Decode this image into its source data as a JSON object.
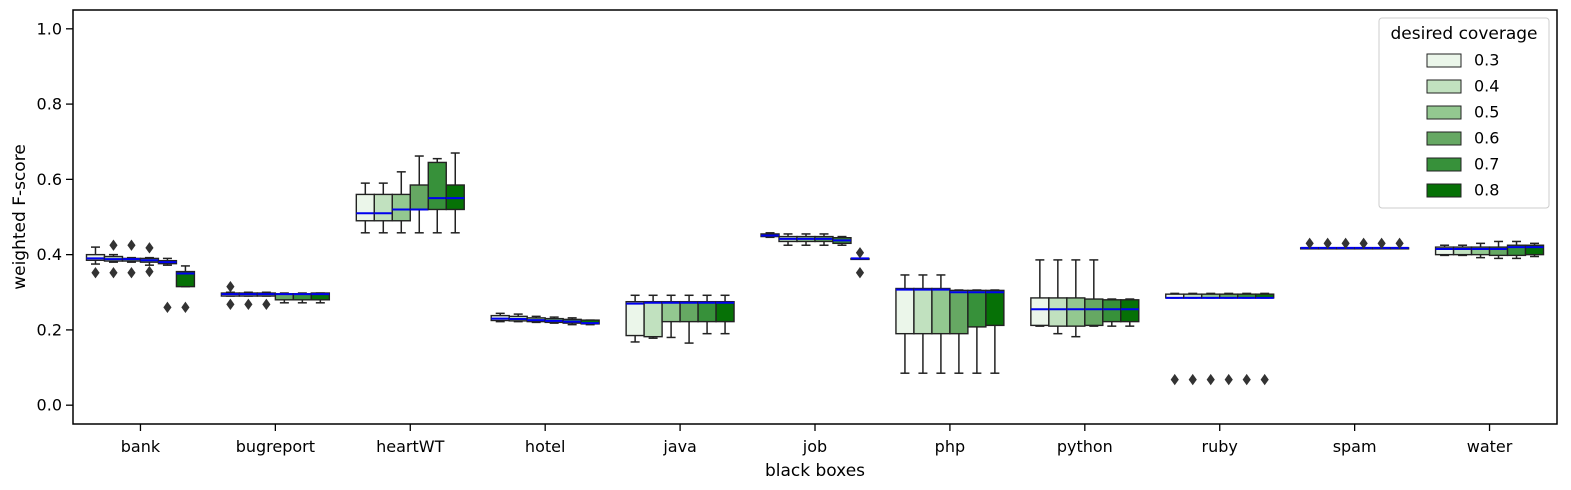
{
  "chart_data": {
    "type": "box",
    "xlabel": "black boxes",
    "ylabel": "weighted F-score",
    "ylim": [
      -0.05,
      1.05
    ],
    "yticks": [
      0.0,
      0.2,
      0.4,
      0.6,
      0.8,
      1.0
    ],
    "ytick_labels": [
      "0.0",
      "0.2",
      "0.4",
      "0.6",
      "0.8",
      "1.0"
    ],
    "grid": false,
    "legend": {
      "title": "desired coverage",
      "placement": "top-right",
      "labels": [
        "0.3",
        "0.4",
        "0.5",
        "0.6",
        "0.7",
        "0.8"
      ]
    },
    "colors": {
      "series": [
        "#ebf6ea",
        "#c1e1bf",
        "#93c890",
        "#66a863",
        "#37913a",
        "#067106"
      ],
      "median": "#0000ee",
      "edge": "#222222"
    },
    "categories": [
      "bank",
      "bugreport",
      "heartWT",
      "hotel",
      "java",
      "job",
      "php",
      "python",
      "ruby",
      "spam",
      "water"
    ],
    "series": [
      {
        "name": "0.3",
        "boxes": [
          {
            "wlo": 0.375,
            "q1": 0.385,
            "med": 0.39,
            "q3": 0.4,
            "whi": 0.42,
            "fliers": [
              0.352
            ]
          },
          {
            "wlo": 0.29,
            "q1": 0.29,
            "med": 0.295,
            "q3": 0.298,
            "whi": 0.3,
            "fliers": [
              0.315,
              0.268
            ]
          },
          {
            "wlo": 0.458,
            "q1": 0.49,
            "med": 0.51,
            "q3": 0.56,
            "whi": 0.59,
            "fliers": []
          },
          {
            "wlo": 0.222,
            "q1": 0.225,
            "med": 0.23,
            "q3": 0.238,
            "whi": 0.244,
            "fliers": []
          },
          {
            "wlo": 0.168,
            "q1": 0.185,
            "med": 0.27,
            "q3": 0.275,
            "whi": 0.292,
            "fliers": []
          },
          {
            "wlo": 0.446,
            "q1": 0.448,
            "med": 0.451,
            "q3": 0.455,
            "whi": 0.458,
            "fliers": []
          },
          {
            "wlo": 0.085,
            "q1": 0.19,
            "med": 0.307,
            "q3": 0.31,
            "whi": 0.346,
            "fliers": []
          },
          {
            "wlo": 0.21,
            "q1": 0.212,
            "med": 0.255,
            "q3": 0.285,
            "whi": 0.386,
            "fliers": []
          },
          {
            "wlo": 0.285,
            "q1": 0.285,
            "med": 0.285,
            "q3": 0.295,
            "whi": 0.297,
            "fliers": [
              0.068
            ]
          },
          {
            "wlo": 0.418,
            "q1": 0.418,
            "med": 0.418,
            "q3": 0.418,
            "whi": 0.418,
            "fliers": [
              0.43
            ]
          },
          {
            "wlo": 0.398,
            "q1": 0.4,
            "med": 0.415,
            "q3": 0.42,
            "whi": 0.425,
            "fliers": []
          }
        ]
      },
      {
        "name": "0.4",
        "boxes": [
          {
            "wlo": 0.38,
            "q1": 0.383,
            "med": 0.388,
            "q3": 0.395,
            "whi": 0.4,
            "fliers": [
              0.425,
              0.352
            ]
          },
          {
            "wlo": 0.29,
            "q1": 0.29,
            "med": 0.295,
            "q3": 0.298,
            "whi": 0.3,
            "fliers": [
              0.268
            ]
          },
          {
            "wlo": 0.458,
            "q1": 0.49,
            "med": 0.51,
            "q3": 0.56,
            "whi": 0.59,
            "fliers": []
          },
          {
            "wlo": 0.222,
            "q1": 0.224,
            "med": 0.229,
            "q3": 0.236,
            "whi": 0.242,
            "fliers": []
          },
          {
            "wlo": 0.178,
            "q1": 0.182,
            "med": 0.272,
            "q3": 0.275,
            "whi": 0.292,
            "fliers": []
          },
          {
            "wlo": 0.425,
            "q1": 0.435,
            "med": 0.442,
            "q3": 0.448,
            "whi": 0.455,
            "fliers": []
          },
          {
            "wlo": 0.085,
            "q1": 0.19,
            "med": 0.307,
            "q3": 0.31,
            "whi": 0.346,
            "fliers": []
          },
          {
            "wlo": 0.19,
            "q1": 0.21,
            "med": 0.255,
            "q3": 0.285,
            "whi": 0.386,
            "fliers": []
          },
          {
            "wlo": 0.285,
            "q1": 0.285,
            "med": 0.285,
            "q3": 0.295,
            "whi": 0.297,
            "fliers": [
              0.068
            ]
          },
          {
            "wlo": 0.418,
            "q1": 0.418,
            "med": 0.418,
            "q3": 0.418,
            "whi": 0.418,
            "fliers": [
              0.43
            ]
          },
          {
            "wlo": 0.398,
            "q1": 0.4,
            "med": 0.415,
            "q3": 0.42,
            "whi": 0.425,
            "fliers": []
          }
        ]
      },
      {
        "name": "0.5",
        "boxes": [
          {
            "wlo": 0.38,
            "q1": 0.383,
            "med": 0.388,
            "q3": 0.39,
            "whi": 0.392,
            "fliers": [
              0.425,
              0.352
            ]
          },
          {
            "wlo": 0.29,
            "q1": 0.29,
            "med": 0.295,
            "q3": 0.298,
            "whi": 0.3,
            "fliers": [
              0.268
            ]
          },
          {
            "wlo": 0.458,
            "q1": 0.49,
            "med": 0.52,
            "q3": 0.56,
            "whi": 0.62,
            "fliers": []
          },
          {
            "wlo": 0.22,
            "q1": 0.222,
            "med": 0.226,
            "q3": 0.232,
            "whi": 0.236,
            "fliers": []
          },
          {
            "wlo": 0.18,
            "q1": 0.222,
            "med": 0.272,
            "q3": 0.275,
            "whi": 0.292,
            "fliers": []
          },
          {
            "wlo": 0.425,
            "q1": 0.435,
            "med": 0.442,
            "q3": 0.448,
            "whi": 0.455,
            "fliers": []
          },
          {
            "wlo": 0.085,
            "q1": 0.19,
            "med": 0.307,
            "q3": 0.31,
            "whi": 0.346,
            "fliers": []
          },
          {
            "wlo": 0.182,
            "q1": 0.21,
            "med": 0.255,
            "q3": 0.285,
            "whi": 0.386,
            "fliers": []
          },
          {
            "wlo": 0.285,
            "q1": 0.285,
            "med": 0.285,
            "q3": 0.295,
            "whi": 0.297,
            "fliers": [
              0.068
            ]
          },
          {
            "wlo": 0.418,
            "q1": 0.418,
            "med": 0.418,
            "q3": 0.418,
            "whi": 0.418,
            "fliers": [
              0.43
            ]
          },
          {
            "wlo": 0.392,
            "q1": 0.4,
            "med": 0.415,
            "q3": 0.42,
            "whi": 0.43,
            "fliers": []
          }
        ]
      },
      {
        "name": "0.6",
        "boxes": [
          {
            "wlo": 0.372,
            "q1": 0.38,
            "med": 0.385,
            "q3": 0.39,
            "whi": 0.392,
            "fliers": [
              0.418,
              0.355
            ]
          },
          {
            "wlo": 0.272,
            "q1": 0.28,
            "med": 0.295,
            "q3": 0.296,
            "whi": 0.298,
            "fliers": []
          },
          {
            "wlo": 0.458,
            "q1": 0.52,
            "med": 0.52,
            "q3": 0.585,
            "whi": 0.662,
            "fliers": []
          },
          {
            "wlo": 0.218,
            "q1": 0.22,
            "med": 0.224,
            "q3": 0.23,
            "whi": 0.234,
            "fliers": []
          },
          {
            "wlo": 0.165,
            "q1": 0.222,
            "med": 0.272,
            "q3": 0.275,
            "whi": 0.292,
            "fliers": []
          },
          {
            "wlo": 0.425,
            "q1": 0.435,
            "med": 0.442,
            "q3": 0.448,
            "whi": 0.455,
            "fliers": []
          },
          {
            "wlo": 0.085,
            "q1": 0.19,
            "med": 0.3,
            "q3": 0.305,
            "whi": 0.306,
            "fliers": []
          },
          {
            "wlo": 0.21,
            "q1": 0.212,
            "med": 0.255,
            "q3": 0.282,
            "whi": 0.386,
            "fliers": []
          },
          {
            "wlo": 0.285,
            "q1": 0.285,
            "med": 0.285,
            "q3": 0.295,
            "whi": 0.297,
            "fliers": [
              0.068
            ]
          },
          {
            "wlo": 0.418,
            "q1": 0.418,
            "med": 0.418,
            "q3": 0.418,
            "whi": 0.418,
            "fliers": [
              0.43
            ]
          },
          {
            "wlo": 0.39,
            "q1": 0.398,
            "med": 0.415,
            "q3": 0.42,
            "whi": 0.435,
            "fliers": []
          }
        ]
      },
      {
        "name": "0.7",
        "boxes": [
          {
            "wlo": 0.372,
            "q1": 0.376,
            "med": 0.38,
            "q3": 0.384,
            "whi": 0.39,
            "fliers": [
              0.26
            ]
          },
          {
            "wlo": 0.272,
            "q1": 0.28,
            "med": 0.295,
            "q3": 0.296,
            "whi": 0.298,
            "fliers": []
          },
          {
            "wlo": 0.458,
            "q1": 0.52,
            "med": 0.55,
            "q3": 0.645,
            "whi": 0.655,
            "fliers": []
          },
          {
            "wlo": 0.214,
            "q1": 0.218,
            "med": 0.222,
            "q3": 0.228,
            "whi": 0.232,
            "fliers": []
          },
          {
            "wlo": 0.19,
            "q1": 0.222,
            "med": 0.272,
            "q3": 0.275,
            "whi": 0.292,
            "fliers": []
          },
          {
            "wlo": 0.425,
            "q1": 0.43,
            "med": 0.438,
            "q3": 0.445,
            "whi": 0.448,
            "fliers": []
          },
          {
            "wlo": 0.085,
            "q1": 0.208,
            "med": 0.3,
            "q3": 0.305,
            "whi": 0.306,
            "fliers": []
          },
          {
            "wlo": 0.21,
            "q1": 0.222,
            "med": 0.255,
            "q3": 0.28,
            "whi": 0.282,
            "fliers": []
          },
          {
            "wlo": 0.285,
            "q1": 0.285,
            "med": 0.285,
            "q3": 0.295,
            "whi": 0.297,
            "fliers": [
              0.068
            ]
          },
          {
            "wlo": 0.418,
            "q1": 0.418,
            "med": 0.418,
            "q3": 0.418,
            "whi": 0.418,
            "fliers": [
              0.43
            ]
          },
          {
            "wlo": 0.39,
            "q1": 0.398,
            "med": 0.42,
            "q3": 0.425,
            "whi": 0.435,
            "fliers": []
          }
        ]
      },
      {
        "name": "0.8",
        "boxes": [
          {
            "wlo": 0.315,
            "q1": 0.315,
            "med": 0.35,
            "q3": 0.355,
            "whi": 0.37,
            "fliers": [
              0.26
            ]
          },
          {
            "wlo": 0.272,
            "q1": 0.28,
            "med": 0.295,
            "q3": 0.298,
            "whi": 0.298,
            "fliers": []
          },
          {
            "wlo": 0.458,
            "q1": 0.52,
            "med": 0.55,
            "q3": 0.585,
            "whi": 0.67,
            "fliers": []
          },
          {
            "wlo": 0.214,
            "q1": 0.216,
            "med": 0.218,
            "q3": 0.226,
            "whi": 0.226,
            "fliers": []
          },
          {
            "wlo": 0.19,
            "q1": 0.222,
            "med": 0.272,
            "q3": 0.275,
            "whi": 0.292,
            "fliers": []
          },
          {
            "wlo": 0.388,
            "q1": 0.388,
            "med": 0.39,
            "q3": 0.39,
            "whi": 0.39,
            "fliers": [
              0.405,
              0.352
            ]
          },
          {
            "wlo": 0.085,
            "q1": 0.212,
            "med": 0.3,
            "q3": 0.305,
            "whi": 0.306,
            "fliers": []
          },
          {
            "wlo": 0.21,
            "q1": 0.222,
            "med": 0.255,
            "q3": 0.28,
            "whi": 0.282,
            "fliers": []
          },
          {
            "wlo": 0.285,
            "q1": 0.285,
            "med": 0.285,
            "q3": 0.295,
            "whi": 0.297,
            "fliers": [
              0.068
            ]
          },
          {
            "wlo": 0.418,
            "q1": 0.418,
            "med": 0.418,
            "q3": 0.418,
            "whi": 0.418,
            "fliers": [
              0.43
            ]
          },
          {
            "wlo": 0.395,
            "q1": 0.4,
            "med": 0.42,
            "q3": 0.425,
            "whi": 0.43,
            "fliers": []
          }
        ]
      }
    ]
  }
}
